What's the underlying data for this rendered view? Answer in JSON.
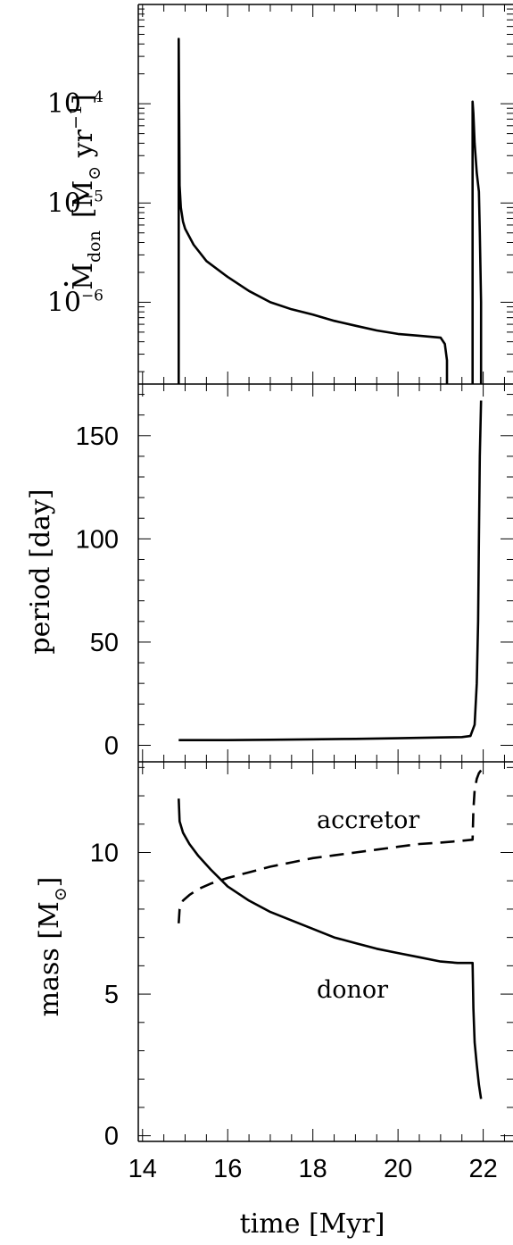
{
  "chart_data": [
    {
      "panel": "mass-transfer-rate",
      "type": "line",
      "ylabel": "Ṁdon [M⊙ yr⁻¹]",
      "ylabel_parts": {
        "main": "M",
        "sub": "don",
        "unit_open": "[M",
        "unit_sub": "⊙",
        "unit_mid": " yr",
        "unit_sup": "−1",
        "unit_close": "]"
      },
      "yscale": "log",
      "ylim": [
        1.5e-07,
        0.001
      ],
      "xlim": [
        13.9,
        22.7
      ],
      "yticks": [
        {
          "value": 0.0001,
          "base": "10",
          "exp": "−4"
        },
        {
          "value": 1e-05,
          "base": "10",
          "exp": "−5"
        },
        {
          "value": 1e-06,
          "base": "10",
          "exp": "−6"
        }
      ],
      "series": [
        {
          "style": "solid",
          "x": [
            14.85,
            14.85,
            14.87,
            14.9,
            14.95,
            15.0,
            15.2,
            15.5,
            16.0,
            16.5,
            17.0,
            17.5,
            18.0,
            18.5,
            19.0,
            19.5,
            20.0,
            20.5,
            21.0,
            21.1,
            21.15,
            21.15
          ],
          "y": [
            1.5e-07,
            0.00045,
            1.5e-05,
            9e-06,
            6.5e-06,
            5.5e-06,
            3.8e-06,
            2.6e-06,
            1.8e-06,
            1.3e-06,
            1e-06,
            8.5e-07,
            7.5e-07,
            6.5e-07,
            5.8e-07,
            5.2e-07,
            4.8e-07,
            4.6e-07,
            4.4e-07,
            3.8e-07,
            2.6e-07,
            1.5e-07
          ]
        },
        {
          "style": "solid",
          "x": [
            21.75,
            21.75,
            21.77,
            21.8,
            21.85,
            21.9,
            21.92,
            21.95,
            21.95
          ],
          "y": [
            1.5e-07,
            0.000105,
            8e-05,
            4e-05,
            2e-05,
            1.3e-05,
            5e-06,
            1e-06,
            1.5e-07
          ]
        }
      ]
    },
    {
      "panel": "period",
      "type": "line",
      "ylabel": "period [day]",
      "ylim": [
        -8,
        175
      ],
      "xlim": [
        13.9,
        22.7
      ],
      "yticks": [
        "0",
        "50",
        "100",
        "150"
      ],
      "ytick_values": [
        0,
        50,
        100,
        150
      ],
      "series": [
        {
          "style": "solid",
          "x": [
            14.85,
            16.0,
            17.0,
            18.0,
            19.0,
            20.0,
            21.0,
            21.5,
            21.7,
            21.8,
            21.85,
            21.88,
            21.9,
            21.92,
            21.95
          ],
          "y": [
            2.5,
            2.5,
            2.7,
            2.9,
            3.1,
            3.4,
            3.8,
            4.0,
            4.5,
            10,
            30,
            60,
            100,
            140,
            167
          ]
        }
      ]
    },
    {
      "panel": "mass",
      "type": "line",
      "ylabel": "mass [M⊙]",
      "ylabel_parts": {
        "main": "mass [M",
        "sub": "⊙",
        "close": "]"
      },
      "ylim": [
        -0.2,
        13.2
      ],
      "xlim": [
        13.9,
        22.7
      ],
      "xlabel": "time [Myr]",
      "yticks": [
        "0",
        "5",
        "10"
      ],
      "ytick_values": [
        0,
        5,
        10
      ],
      "xticks": [
        "14",
        "16",
        "18",
        "20",
        "22"
      ],
      "xtick_values": [
        14,
        16,
        18,
        20,
        22
      ],
      "annotations": [
        "accretor",
        "donor"
      ],
      "series": [
        {
          "label": "donor",
          "style": "solid",
          "x": [
            14.85,
            14.87,
            14.95,
            15.1,
            15.3,
            15.6,
            16.0,
            16.5,
            17.0,
            17.5,
            18.0,
            18.5,
            19.0,
            19.5,
            20.0,
            20.5,
            21.0,
            21.4,
            21.75,
            21.77,
            21.8,
            21.85,
            21.9,
            21.95
          ],
          "y": [
            11.9,
            11.1,
            10.7,
            10.3,
            9.9,
            9.4,
            8.8,
            8.3,
            7.9,
            7.6,
            7.3,
            7.0,
            6.8,
            6.6,
            6.45,
            6.3,
            6.15,
            6.1,
            6.1,
            4.5,
            3.3,
            2.5,
            1.8,
            1.3
          ]
        },
        {
          "label": "accretor",
          "style": "dashed",
          "x": [
            14.85,
            14.87,
            14.95,
            15.1,
            15.3,
            15.6,
            16.0,
            16.5,
            17.0,
            17.5,
            18.0,
            18.5,
            19.0,
            19.5,
            20.0,
            20.5,
            21.0,
            21.4,
            21.75,
            21.77,
            21.8,
            21.85,
            21.9,
            21.95
          ],
          "y": [
            7.5,
            8.0,
            8.3,
            8.5,
            8.7,
            8.9,
            9.1,
            9.3,
            9.5,
            9.65,
            9.8,
            9.9,
            10.0,
            10.1,
            10.2,
            10.3,
            10.35,
            10.4,
            10.45,
            11.5,
            12.2,
            12.6,
            12.8,
            12.9
          ]
        }
      ]
    }
  ]
}
